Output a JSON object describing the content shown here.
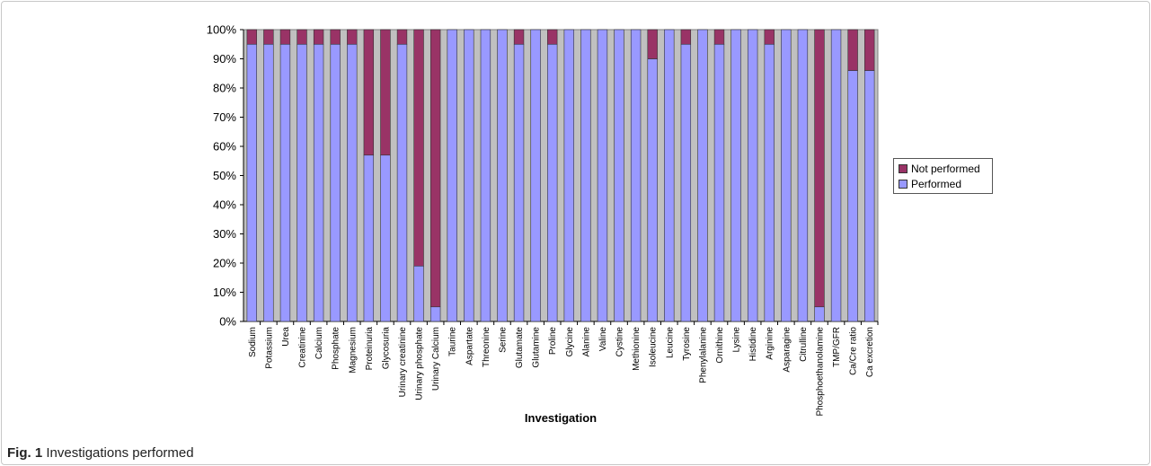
{
  "caption": {
    "label": "Fig. 1",
    "text": "Investigations performed"
  },
  "chart_data": {
    "type": "bar",
    "stacked": true,
    "percent": true,
    "xlabel": "Investigation",
    "ylabel": "",
    "ylim": [
      0,
      100
    ],
    "yticks": [
      "0%",
      "10%",
      "20%",
      "30%",
      "40%",
      "50%",
      "60%",
      "70%",
      "80%",
      "90%",
      "100%"
    ],
    "grid": false,
    "legend_position": "right",
    "plot_background": "#c0c0c0",
    "categories": [
      "Sodium",
      "Potassium",
      "Urea",
      "Creatinine",
      "Calcium",
      "Phosphate",
      "Magnesium",
      "Proteinuria",
      "Glycosuria",
      "Urinary creatinine",
      "Urinary phosphate",
      "Urinary Calcium",
      "Taurine",
      "Aspartate",
      "Threonine",
      "Serine",
      "Glutamate",
      "Glutamine",
      "Proline",
      "Glycine",
      "Alanine",
      "Valine",
      "Cystine",
      "Methionine",
      "Isoleucine",
      "Leucine",
      "Tyrosine",
      "Phenylalanine",
      "Ornithine",
      "Lysine",
      "Histidine",
      "Arginine",
      "Asparagine",
      "Citrulline",
      "Phosphoethanolamine",
      "TMP/GFR",
      "Ca/Cre ratio",
      "Ca excretion"
    ],
    "series": [
      {
        "name": "Performed",
        "color": "#9999ff",
        "values": [
          95,
          95,
          95,
          95,
          95,
          95,
          95,
          57,
          57,
          95,
          19,
          5,
          100,
          100,
          100,
          100,
          95,
          100,
          95,
          100,
          100,
          100,
          100,
          100,
          90,
          100,
          95,
          100,
          95,
          100,
          100,
          95,
          100,
          100,
          5,
          100,
          86,
          86
        ]
      },
      {
        "name": "Not performed",
        "color": "#993366",
        "values": [
          5,
          5,
          5,
          5,
          5,
          5,
          5,
          43,
          43,
          5,
          81,
          95,
          0,
          0,
          0,
          0,
          5,
          0,
          5,
          0,
          0,
          0,
          0,
          0,
          10,
          0,
          5,
          0,
          5,
          0,
          0,
          5,
          0,
          0,
          95,
          0,
          14,
          14
        ]
      }
    ]
  }
}
